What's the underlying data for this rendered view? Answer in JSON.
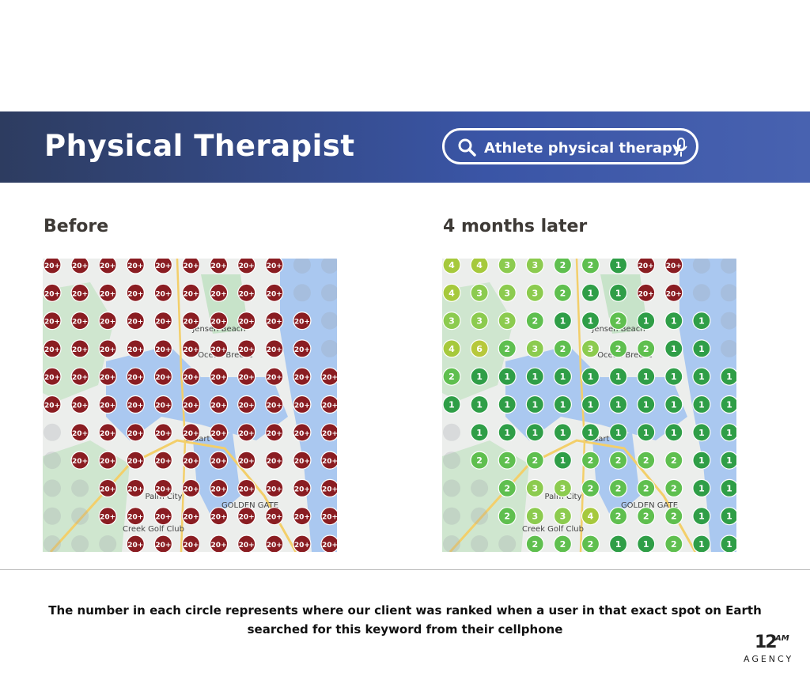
{
  "header": {
    "title": "Physical Therapist",
    "search_text": "Athlete physical therapy"
  },
  "before": {
    "label": "Before",
    "grid": [
      [
        "20+",
        "20+",
        "20+",
        "20+",
        "20+",
        "20+",
        "20+",
        "20+",
        "20+",
        null,
        null
      ],
      [
        "20+",
        "20+",
        "20+",
        "20+",
        "20+",
        "20+",
        "20+",
        "20+",
        "20+",
        null,
        null
      ],
      [
        "20+",
        "20+",
        "20+",
        "20+",
        "20+",
        "20+",
        "20+",
        "20+",
        "20+",
        "20+",
        null
      ],
      [
        "20+",
        "20+",
        "20+",
        "20+",
        "20+",
        "20+",
        "20+",
        "20+",
        "20+",
        "20+",
        null
      ],
      [
        "20+",
        "20+",
        "20+",
        "20+",
        "20+",
        "20+",
        "20+",
        "20+",
        "20+",
        "20+",
        "20+"
      ],
      [
        "20+",
        "20+",
        "20+",
        "20+",
        "20+",
        "20+",
        "20+",
        "20+",
        "20+",
        "20+",
        "20+"
      ],
      [
        null,
        "20+",
        "20+",
        "20+",
        "20+",
        "20+",
        "20+",
        "20+",
        "20+",
        "20+",
        "20+"
      ],
      [
        null,
        "20+",
        "20+",
        "20+",
        "20+",
        "20+",
        "20+",
        "20+",
        "20+",
        "20+",
        "20+"
      ],
      [
        null,
        null,
        "20+",
        "20+",
        "20+",
        "20+",
        "20+",
        "20+",
        "20+",
        "20+",
        "20+"
      ],
      [
        null,
        null,
        "20+",
        "20+",
        "20+",
        "20+",
        "20+",
        "20+",
        "20+",
        "20+",
        "20+"
      ],
      [
        null,
        null,
        null,
        "20+",
        "20+",
        "20+",
        "20+",
        "20+",
        "20+",
        "20+",
        "20+"
      ]
    ]
  },
  "after": {
    "label": "4 months later",
    "grid": [
      [
        "4",
        "4",
        "3",
        "3",
        "2",
        "2",
        "1",
        "20+",
        "20+",
        null,
        null
      ],
      [
        "4",
        "3",
        "3",
        "3",
        "2",
        "1",
        "1",
        "20+",
        "20+",
        null,
        null
      ],
      [
        "3",
        "3",
        "3",
        "2",
        "1",
        "1",
        "2",
        "1",
        "1",
        "1",
        null
      ],
      [
        "4",
        "6",
        "2",
        "3",
        "2",
        "3",
        "2",
        "2",
        "1",
        "1",
        null
      ],
      [
        "2",
        "1",
        "1",
        "1",
        "1",
        "1",
        "1",
        "1",
        "1",
        "1",
        "1"
      ],
      [
        "1",
        "1",
        "1",
        "1",
        "1",
        "1",
        "1",
        "1",
        "1",
        "1",
        "1"
      ],
      [
        null,
        "1",
        "1",
        "1",
        "1",
        "1",
        "1",
        "1",
        "1",
        "1",
        "1"
      ],
      [
        null,
        "2",
        "2",
        "2",
        "1",
        "2",
        "2",
        "2",
        "2",
        "1",
        "1"
      ],
      [
        null,
        null,
        "2",
        "3",
        "3",
        "2",
        "2",
        "2",
        "2",
        "1",
        "1"
      ],
      [
        null,
        null,
        "2",
        "3",
        "3",
        "4",
        "2",
        "2",
        "2",
        "1",
        "1"
      ],
      [
        null,
        null,
        null,
        "2",
        "2",
        "2",
        "1",
        "1",
        "2",
        "1",
        "1"
      ]
    ]
  },
  "rank_colors": {
    "20+": "#8a1d22",
    "1": "#2f9e47",
    "2": "#5fbf4f",
    "3": "#8ccb4f",
    "4": "#a6c93c",
    "6": "#b7c83a"
  },
  "map_labels": [
    "Jensen Beach",
    "Ocean Breeze",
    "Stuart",
    "Palm City",
    "GOLDEN GATE",
    "Creek Golf Club"
  ],
  "footer": {
    "line1": "The number in each circle represents where our client was ranked when a user in that exact spot on Earth",
    "line2": "searched for this keyword from their cellphone"
  },
  "logo": {
    "number": "12",
    "suffix": "AM",
    "word": "AGENCY"
  }
}
